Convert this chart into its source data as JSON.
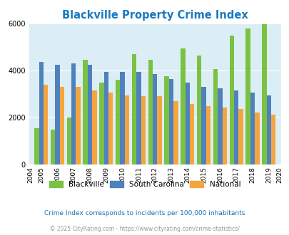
{
  "title": "Blackville Property Crime Index",
  "valid_years": [
    2005,
    2006,
    2007,
    2008,
    2009,
    2010,
    2011,
    2012,
    2013,
    2014,
    2015,
    2016,
    2017,
    2018,
    2019
  ],
  "blackville": [
    1550,
    1480,
    2000,
    4450,
    3500,
    3600,
    4700,
    4450,
    3750,
    4950,
    4650,
    4050,
    5500,
    5800,
    5980
  ],
  "south_carolina": [
    4350,
    4250,
    4300,
    4250,
    3950,
    3950,
    3950,
    3850,
    3650,
    3500,
    3300,
    3250,
    3150,
    3050,
    2950
  ],
  "national": [
    3400,
    3300,
    3300,
    3150,
    3050,
    2950,
    2900,
    2900,
    2700,
    2580,
    2470,
    2420,
    2350,
    2200,
    2130
  ],
  "display_years": [
    2004,
    2005,
    2006,
    2007,
    2008,
    2009,
    2010,
    2011,
    2012,
    2013,
    2014,
    2015,
    2016,
    2017,
    2018,
    2019,
    2020
  ],
  "blackville_color": "#7bc143",
  "sc_color": "#4f81bd",
  "national_color": "#f4a53e",
  "bg_color": "#dceef5",
  "title_color": "#1a7abf",
  "ylim": [
    0,
    6000
  ],
  "yticks": [
    0,
    2000,
    4000,
    6000
  ],
  "subtitle": "Crime Index corresponds to incidents per 100,000 inhabitants",
  "footer": "© 2025 CityRating.com - https://www.cityrating.com/crime-statistics/",
  "subtitle_color": "#1a6faa",
  "footer_color": "#999999",
  "bar_width": 0.28
}
